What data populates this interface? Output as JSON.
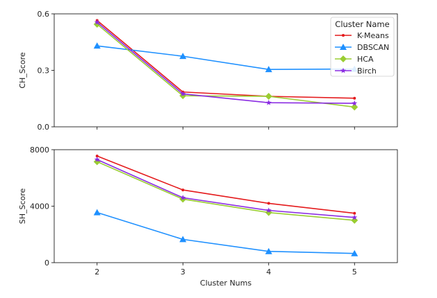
{
  "chart_data": [
    {
      "type": "line",
      "x": [
        2,
        3,
        4,
        5
      ],
      "xlabel": "",
      "ylabel": "CH_Score",
      "ylim": [
        0,
        0.6
      ],
      "yticks": [
        "0.0",
        "0.3",
        "0.6"
      ],
      "xticks": [
        "2",
        "3",
        "4",
        "5"
      ],
      "show_x_tick_labels": false,
      "grid": false,
      "legend": {
        "title": "Cluster Name",
        "placement": "top-right"
      },
      "series": [
        {
          "name": "K-Means",
          "color": "#e41a1c",
          "marker": "dot",
          "values": [
            0.565,
            0.185,
            0.162,
            0.152
          ]
        },
        {
          "name": "DBSCAN",
          "color": "#1e90ff",
          "marker": "triangle",
          "values": [
            0.43,
            0.375,
            0.305,
            0.307
          ]
        },
        {
          "name": "HCA",
          "color": "#9acd32",
          "marker": "diamond",
          "values": [
            0.545,
            0.165,
            0.162,
            0.105
          ]
        },
        {
          "name": "Birch",
          "color": "#8a2be2",
          "marker": "star",
          "values": [
            0.555,
            0.175,
            0.128,
            0.125
          ]
        }
      ]
    },
    {
      "type": "line",
      "x": [
        2,
        3,
        4,
        5
      ],
      "xlabel": "Cluster Nums",
      "ylabel": "SH_Score",
      "ylim": [
        0,
        8000
      ],
      "yticks": [
        "0",
        "4000",
        "8000"
      ],
      "xticks": [
        "2",
        "3",
        "4",
        "5"
      ],
      "show_x_tick_labels": true,
      "grid": false,
      "series": [
        {
          "name": "K-Means",
          "color": "#e41a1c",
          "marker": "dot",
          "values": [
            7550,
            5150,
            4200,
            3500
          ]
        },
        {
          "name": "DBSCAN",
          "color": "#1e90ff",
          "marker": "triangle",
          "values": [
            3550,
            1650,
            800,
            650
          ]
        },
        {
          "name": "HCA",
          "color": "#9acd32",
          "marker": "diamond",
          "values": [
            7150,
            4500,
            3550,
            3000
          ]
        },
        {
          "name": "Birch",
          "color": "#8a2be2",
          "marker": "star",
          "values": [
            7300,
            4600,
            3700,
            3200
          ]
        }
      ]
    }
  ]
}
